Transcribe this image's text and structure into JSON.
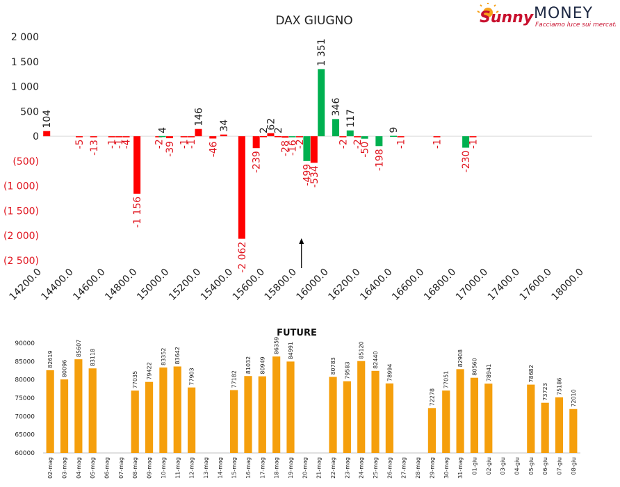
{
  "logo": {
    "brand_a": "Sunny",
    "brand_b": "MONEY",
    "tagline": "Facciamo luce sui mercati"
  },
  "colors": {
    "positive": "#00b050",
    "negative": "#ff0000",
    "future": "#f59f0c",
    "text": "#222222",
    "neg_label": "#e0141e"
  },
  "chart_data": [
    {
      "type": "bar",
      "title": "DAX GIUGNO",
      "ylim": [
        -2500,
        2000
      ],
      "yticks": [
        {
          "v": 2000,
          "label": "2 000"
        },
        {
          "v": 1500,
          "label": "1 500"
        },
        {
          "v": 1000,
          "label": "1 000"
        },
        {
          "v": 500,
          "label": "500"
        },
        {
          "v": 0,
          "label": "0"
        },
        {
          "v": -500,
          "label": "(500)"
        },
        {
          "v": -1000,
          "label": "(1 000)"
        },
        {
          "v": -1500,
          "label": "(1 500)"
        },
        {
          "v": -2000,
          "label": "(2 000)"
        },
        {
          "v": -2500,
          "label": "(2 500)"
        }
      ],
      "xlim": [
        14200,
        18000
      ],
      "xticks": [
        "14200.0",
        "14400.0",
        "14600.0",
        "14800.0",
        "15000.0",
        "15200.0",
        "15400.0",
        "15600.0",
        "15800.0",
        "16000.0",
        "16200.0",
        "16400.0",
        "16600.0",
        "16800.0",
        "17000.0",
        "17400.0",
        "17600.0",
        "18000.0"
      ],
      "marker_x": 15988,
      "points": [
        {
          "x": 14225,
          "value": 104,
          "label": "104",
          "color": "red"
        },
        {
          "x": 14450,
          "value": -5,
          "label": "-5",
          "color": "red"
        },
        {
          "x": 14550,
          "value": -13,
          "label": "-13",
          "color": "red"
        },
        {
          "x": 14675,
          "value": -1,
          "label": "-1",
          "color": "red"
        },
        {
          "x": 14725,
          "value": -1,
          "label": "-1",
          "color": "red"
        },
        {
          "x": 14775,
          "value": -4,
          "label": "-4",
          "color": "red"
        },
        {
          "x": 14850,
          "value": -1156,
          "label": "-1 156",
          "color": "red"
        },
        {
          "x": 15000,
          "value": -2,
          "label": "-2",
          "color": "red"
        },
        {
          "x": 15025,
          "value": 4,
          "label": "4",
          "color": "green"
        },
        {
          "x": 15075,
          "value": -39,
          "label": "-39",
          "color": "red"
        },
        {
          "x": 15175,
          "value": -1,
          "label": "-1",
          "color": "red"
        },
        {
          "x": 15225,
          "value": -1,
          "label": "-1",
          "color": "red"
        },
        {
          "x": 15275,
          "value": 146,
          "label": "146",
          "color": "red"
        },
        {
          "x": 15375,
          "value": -46,
          "label": "-46",
          "color": "red"
        },
        {
          "x": 15450,
          "value": 34,
          "label": "34",
          "color": "red"
        },
        {
          "x": 15575,
          "value": -2062,
          "label": "-2 062",
          "color": "red"
        },
        {
          "x": 15675,
          "value": -239,
          "label": "-239",
          "color": "red"
        },
        {
          "x": 15725,
          "value": 2,
          "label": "2",
          "color": "red"
        },
        {
          "x": 15775,
          "value": 62,
          "label": "62",
          "color": "red"
        },
        {
          "x": 15825,
          "value": 2,
          "label": "2",
          "color": "red"
        },
        {
          "x": 15875,
          "value": -28,
          "label": "-28",
          "color": "red"
        },
        {
          "x": 15925,
          "value": -16,
          "label": "-16",
          "color": "green"
        },
        {
          "x": 15975,
          "value": -2,
          "label": "-2",
          "color": "red"
        },
        {
          "x": 16025,
          "value": -499,
          "label": "-499",
          "color": "green"
        },
        {
          "x": 16075,
          "value": -534,
          "label": "-534",
          "color": "red"
        },
        {
          "x": 16125,
          "value": 1351,
          "label": "1 351",
          "color": "green"
        },
        {
          "x": 16225,
          "value": 346,
          "label": "346",
          "color": "green"
        },
        {
          "x": 16275,
          "value": -2,
          "label": "-2",
          "color": "red"
        },
        {
          "x": 16325,
          "value": 117,
          "label": "117",
          "color": "green"
        },
        {
          "x": 16375,
          "value": -2,
          "label": "-2",
          "color": "red"
        },
        {
          "x": 16425,
          "value": -50,
          "label": "-50",
          "color": "green"
        },
        {
          "x": 16525,
          "value": -198,
          "label": "-198",
          "color": "green"
        },
        {
          "x": 16625,
          "value": 9,
          "label": "9",
          "color": "green"
        },
        {
          "x": 16675,
          "value": -1,
          "label": "-1",
          "color": "red"
        },
        {
          "x": 16925,
          "value": -1,
          "label": "-1",
          "color": "red"
        },
        {
          "x": 17125,
          "value": -230,
          "label": "-230",
          "color": "green"
        },
        {
          "x": 17175,
          "value": -1,
          "label": "-1",
          "color": "red"
        }
      ]
    },
    {
      "type": "bar",
      "title": "FUTURE",
      "ylim": [
        60000,
        90000
      ],
      "yticks": [
        "90000",
        "85000",
        "80000",
        "75000",
        "70000",
        "65000",
        "60000"
      ],
      "categories": [
        "02-mag",
        "03-mag",
        "04-mag",
        "05-mag",
        "06-mag",
        "07-mag",
        "08-mag",
        "09-mag",
        "10-mag",
        "11-mag",
        "12-mag",
        "13-mag",
        "14-mag",
        "15-mag",
        "16-mag",
        "17-mag",
        "18-mag",
        "19-mag",
        "20-mag",
        "21-mag",
        "22-mag",
        "23-mag",
        "24-mag",
        "25-mag",
        "26-mag",
        "27-mag",
        "28-mag",
        "29-mag",
        "30-mag",
        "31-mag",
        "01-giu",
        "02-giu",
        "03-giu",
        "04-giu",
        "05-giu",
        "06-giu",
        "07-giu",
        "08-giu"
      ],
      "values": [
        82619,
        80096,
        85607,
        83118,
        null,
        null,
        77035,
        79422,
        83352,
        83642,
        77903,
        null,
        null,
        77182,
        81032,
        80949,
        86359,
        84991,
        null,
        null,
        80783,
        79583,
        85120,
        82440,
        78994,
        null,
        null,
        72278,
        77051,
        82908,
        80560,
        78941,
        null,
        null,
        78682,
        73723,
        75186,
        72010
      ],
      "labels": [
        "82619",
        "80096",
        "85607",
        "83118",
        "",
        "",
        "77035",
        "79422",
        "83352",
        "83642",
        "77903",
        "",
        "",
        "77182",
        "81032",
        "80949",
        "86359",
        "84991",
        "",
        "",
        "80783",
        "79583",
        "85120",
        "82440",
        "78994",
        "",
        "",
        "72278",
        "77051",
        "82908",
        "80560",
        "78941",
        "",
        "",
        "78682",
        "73723",
        "75186",
        "72010"
      ]
    }
  ]
}
